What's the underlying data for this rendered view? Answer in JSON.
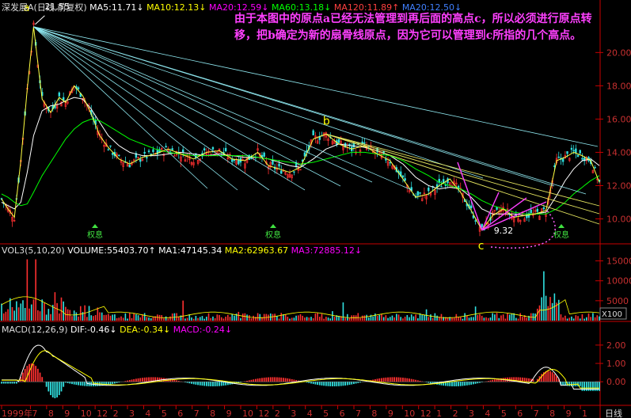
{
  "header": {
    "stock": "深发展A",
    "period": "(日线,前复权)",
    "ma5": "MA5:11.71",
    "ma10": "MA10:12.13",
    "ma20": "MA20:12.59",
    "ma60": "MA60:13.18",
    "ma120": "MA120:11.89",
    "ma250": "MA20:12.50"
  },
  "volume_header": {
    "vol": "VOL3(5,10,20)",
    "volume": "VOLUME:55403.70",
    "ma1": "MA1:47145.34",
    "ma2": "MA2:62963.67",
    "ma3": "MA3:72885.12"
  },
  "macd_header": {
    "macd": "MACD(12,26,9)",
    "dif": "DIF:-0.46",
    "dea": "DEA:-0.34",
    "macd_val": "MACD:-0.24"
  },
  "annotation": "由于本图中的原点a已经无法管理到再后面的高点c，所以必须进行原点转移，把b确定为新的扇骨线原点，因为它可以管理到c所指的几个高点。",
  "markers": {
    "a": "a",
    "b": "b",
    "c": "c",
    "high_label": "21.55",
    "low_label": "9.32",
    "quan": "权息"
  },
  "colors": {
    "ma5": "#ffffff",
    "ma10": "#ffff00",
    "ma20": "#ff00ff",
    "ma60": "#00ff00",
    "ma120": "#ff4040",
    "ma250": "#4080ff",
    "fan": "#8fe8f0",
    "fan_b": "#e8e860",
    "axis": "#c80000",
    "annotation": "#ff40ff"
  },
  "chart_data": [
    {
      "type": "line",
      "panel": "price",
      "ylim": [
        8.5,
        22.3
      ],
      "yticks": [
        "20.00",
        "18.00",
        "16.00",
        "14.00",
        "12.00",
        "10.00"
      ],
      "ytick_values": [
        20,
        18,
        16,
        14,
        12,
        10
      ],
      "x_index": [
        0,
        3,
        6,
        9,
        12,
        15,
        19,
        23,
        27,
        30,
        34,
        38,
        42,
        46,
        50,
        55,
        60,
        66,
        72,
        78,
        84,
        90,
        96,
        102,
        108,
        114,
        120,
        125,
        130,
        135,
        140,
        146,
        152,
        158,
        164,
        170,
        176,
        182,
        188,
        194,
        200,
        205,
        210,
        215,
        220,
        225,
        230,
        235,
        240,
        245,
        250,
        255,
        260,
        264,
        268,
        272,
        276,
        280
      ],
      "close": [
        11.2,
        10.6,
        10.1,
        13.5,
        17.8,
        21.55,
        17.2,
        16.4,
        17.3,
        17.0,
        18.0,
        17.4,
        16.3,
        15.0,
        14.3,
        13.6,
        13.3,
        13.7,
        13.9,
        14.2,
        13.9,
        13.6,
        14.0,
        14.1,
        13.6,
        13.5,
        14.0,
        13.2,
        13.0,
        12.8,
        13.1,
        14.8,
        15.1,
        14.5,
        14.2,
        14.4,
        13.9,
        13.5,
        12.4,
        11.3,
        11.5,
        12.0,
        12.4,
        11.6,
        10.5,
        9.32,
        10.2,
        10.6,
        10.1,
        10.2,
        10.3,
        10.5,
        13.5,
        13.7,
        14.0,
        13.8,
        13.5,
        12.2
      ],
      "ma20": [
        11.0,
        10.8,
        10.6,
        11.0,
        12.8,
        15.0,
        16.5,
        16.8,
        16.9,
        17.1,
        17.3,
        17.2,
        16.6,
        15.8,
        15.0,
        14.4,
        14.0,
        13.8,
        13.8,
        13.9,
        14.0,
        13.9,
        13.8,
        13.9,
        13.8,
        13.7,
        13.7,
        13.6,
        13.4,
        13.2,
        13.1,
        13.6,
        14.2,
        14.5,
        14.4,
        14.3,
        14.1,
        13.8,
        13.3,
        12.5,
        12.0,
        11.8,
        11.9,
        11.8,
        11.3,
        10.6,
        10.3,
        10.3,
        10.3,
        10.2,
        10.3,
        10.4,
        11.4,
        12.3,
        13.0,
        13.5,
        13.6,
        13.2
      ],
      "ma60": [
        11.5,
        11.3,
        11.0,
        10.8,
        10.9,
        11.6,
        12.6,
        13.4,
        14.2,
        14.8,
        15.4,
        15.8,
        16.0,
        15.9,
        15.6,
        15.2,
        14.8,
        14.5,
        14.2,
        14.0,
        13.9,
        13.8,
        13.8,
        13.8,
        13.8,
        13.8,
        13.7,
        13.6,
        13.5,
        13.4,
        13.3,
        13.4,
        13.6,
        13.8,
        14.0,
        14.0,
        13.9,
        13.8,
        13.5,
        13.0,
        12.6,
        12.2,
        12.0,
        11.8,
        11.5,
        11.1,
        10.8,
        10.6,
        10.4,
        10.3,
        10.3,
        10.3,
        10.6,
        11.0,
        11.5,
        11.9,
        12.3,
        12.6
      ],
      "fan_origin_a": [
        15,
        21.55
      ],
      "fan_origin_b": [
        152,
        15.1
      ],
      "anchor_c": [
        225,
        9.32
      ]
    },
    {
      "type": "bar",
      "panel": "volume",
      "ylim": [
        0,
        16500
      ],
      "yticks": [
        "15000",
        "10000",
        "5000"
      ],
      "ytick_values": [
        15000,
        10000,
        5000
      ],
      "scale_label": "X100"
    },
    {
      "type": "bar",
      "panel": "macd",
      "ylim": [
        -1.2,
        2.6
      ],
      "yticks": [
        "2.00",
        "1.00",
        "0.00"
      ],
      "ytick_values": [
        2,
        1,
        0
      ]
    }
  ],
  "x_axis": {
    "labels": [
      "1999年",
      "7",
      "8",
      "9",
      "10",
      "12",
      "2",
      "3",
      "4",
      "5",
      "6",
      "7",
      "8",
      "9",
      "10",
      "12",
      "2",
      "3",
      "4",
      "5",
      "6",
      "7",
      "8",
      "9",
      "10",
      "12",
      "1",
      "2",
      "3",
      "4",
      "5",
      "6",
      "7",
      "8",
      "9",
      "1"
    ],
    "right_label": "日线"
  }
}
